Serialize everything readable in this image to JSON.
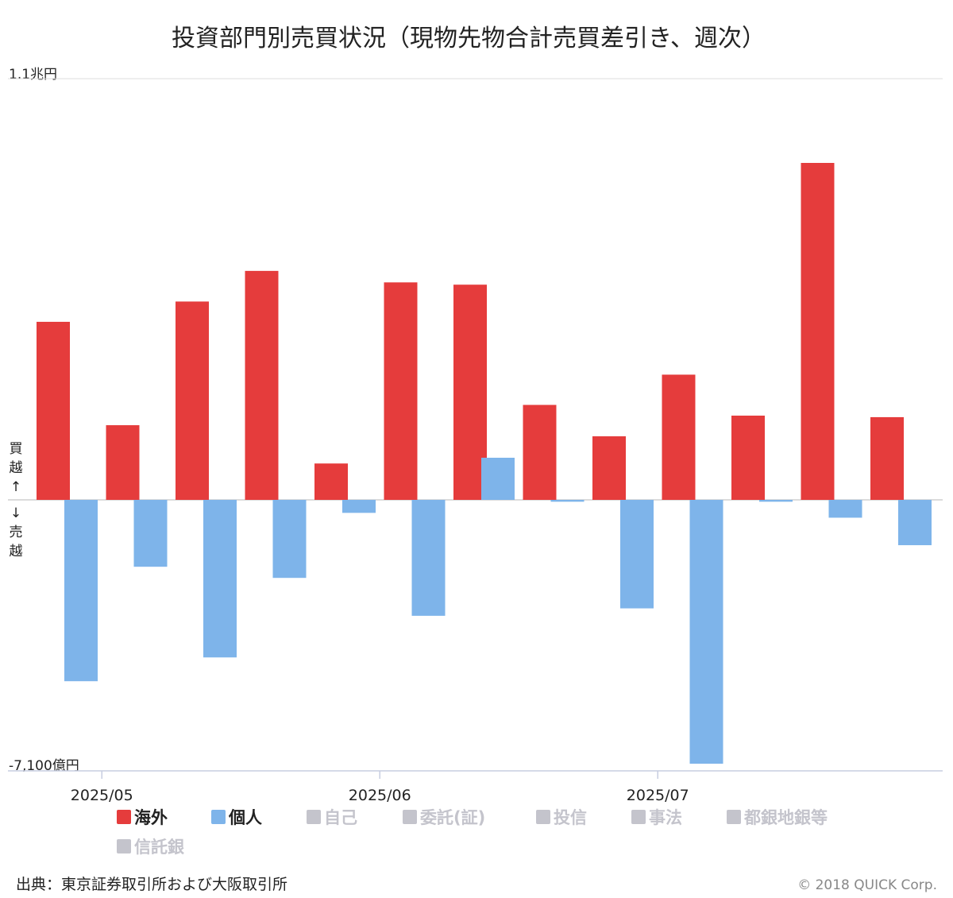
{
  "chart_data": {
    "type": "bar",
    "title": "投資部門別売買状況（現物先物合計売買差引き、週次）",
    "ymax_label": "1.1兆円",
    "ymin_label": "-7,100億円",
    "ylim": [
      -7100,
      11000
    ],
    "y_unit": "億円",
    "side_label_top": [
      "買",
      "越",
      "↑"
    ],
    "side_label_bottom": [
      "↓",
      "売",
      "越"
    ],
    "x_tick_labels": [
      {
        "label": "2025/05",
        "after_week": 0
      },
      {
        "label": "2025/06",
        "after_week": 4
      },
      {
        "label": "2025/07",
        "after_week": 8
      }
    ],
    "series": [
      {
        "name": "海外",
        "color": "#e53c3c",
        "values": [
          4650,
          1950,
          5180,
          5980,
          950,
          5680,
          5620,
          2480,
          1660,
          3270,
          2200,
          8800,
          2160
        ]
      },
      {
        "name": "個人",
        "color": "#7eb4ea",
        "values": [
          -4880,
          -1800,
          -4240,
          -2100,
          -350,
          -3120,
          1100,
          -50,
          -2920,
          -7100,
          -50,
          -480,
          -1220
        ]
      }
    ],
    "legend": {
      "placement": "bottom",
      "items": [
        {
          "name": "海外",
          "active": true,
          "color": "#e53c3c"
        },
        {
          "name": "個人",
          "active": true,
          "color": "#7eb4ea"
        },
        {
          "name": "自己",
          "active": false,
          "color": "#c4c4cc"
        },
        {
          "name": "委託(証)",
          "active": false,
          "color": "#c4c4cc"
        },
        {
          "name": "投信",
          "active": false,
          "color": "#c4c4cc"
        },
        {
          "name": "事法",
          "active": false,
          "color": "#c4c4cc"
        },
        {
          "name": "都銀地銀等",
          "active": false,
          "color": "#c4c4cc"
        },
        {
          "name": "信託銀",
          "active": false,
          "color": "#c4c4cc"
        }
      ]
    },
    "grid": true
  },
  "footer": {
    "source": "出典：東京証券取引所および大阪取引所",
    "copyright": "© 2018 QUICK Corp."
  }
}
